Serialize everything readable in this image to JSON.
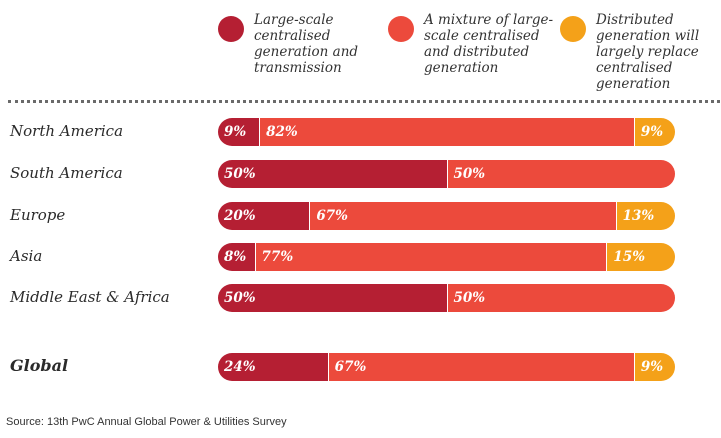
{
  "chart_data": {
    "type": "bar",
    "orientation": "horizontal",
    "stacked": true,
    "normalized": true,
    "categories": [
      "North America",
      "South America",
      "Europe",
      "Asia",
      "Middle East & Africa",
      "Global"
    ],
    "series": [
      {
        "name": "Large-scale centralised generation and transmission",
        "color": "#b51f33",
        "values": [
          9,
          50,
          20,
          8,
          50,
          24
        ]
      },
      {
        "name": "A mixture of large-scale centralised and distributed generation",
        "color": "#ec4a3c",
        "values": [
          82,
          50,
          67,
          77,
          50,
          67
        ]
      },
      {
        "name": "Distributed generation will largely replace centralised generation",
        "color": "#f4a119",
        "values": [
          9,
          0,
          13,
          15,
          0,
          9
        ]
      }
    ],
    "value_suffix": "%",
    "legend_position": "top",
    "ylim": [
      0,
      100
    ],
    "source": "Source: 13th PwC Annual Global Power & Utilities Survey"
  }
}
